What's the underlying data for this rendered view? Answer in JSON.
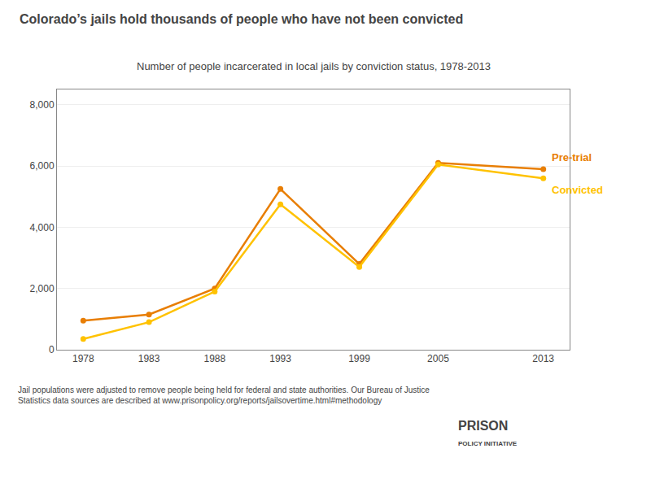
{
  "chart_data": {
    "type": "line",
    "title": "Colorado’s jails hold thousands of people who have not been convicted",
    "subtitle": "Number of people incarcerated in local jails by conviction status, 1978-2013",
    "annotations": [
      "Jail populations were adjusted to remove people being held for federal and state authorities. Our Bureau of Justice\nStatistics data sources are described at www.prisonpolicy.org/reports/jailsovertime.html#methodology",
      "PRISON",
      "POLICY INITIATIVE"
    ],
    "x": [
      1978,
      1983,
      1988,
      1993,
      1999,
      2005,
      2013
    ],
    "series": [
      {
        "name": "Pre-trial",
        "color": "#E87E04",
        "values": [
          950,
          1150,
          2000,
          5250,
          2800,
          6100,
          5900
        ]
      },
      {
        "name": "Convicted",
        "color": "#FFC200",
        "values": [
          350,
          900,
          1900,
          4750,
          2700,
          6050,
          5600
        ]
      }
    ],
    "marker": "circle",
    "xlim": [
      1976,
      2015
    ],
    "xticks": [
      1978,
      1983,
      1988,
      1993,
      1999,
      2005,
      2013
    ],
    "ylim": [
      0,
      8500
    ],
    "yticks": [
      0,
      {
        "value": 2000,
        "label": "2,000"
      },
      {
        "value": 4000,
        "label": "4,000"
      },
      {
        "value": 6000,
        "label": "6,000"
      },
      {
        "value": 8000,
        "label": "8,000"
      }
    ],
    "grid": true
  }
}
